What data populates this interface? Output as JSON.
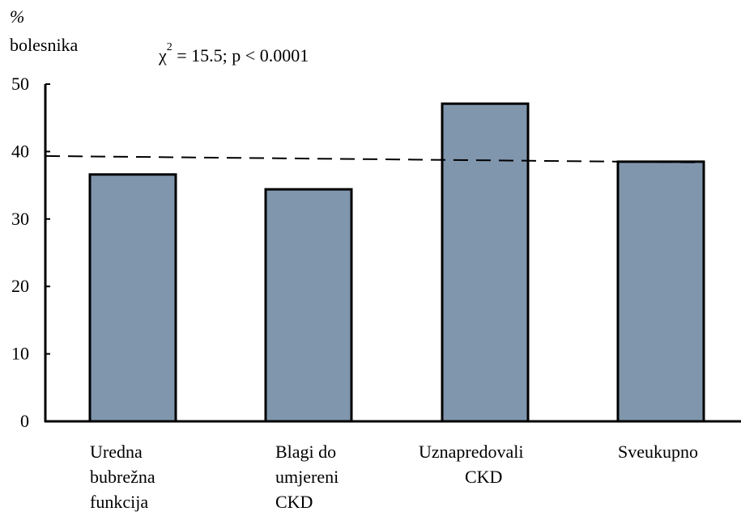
{
  "chart_data": {
    "type": "bar",
    "ylabel_lines": [
      "%",
      "bolesnika"
    ],
    "annotation": {
      "chi": "χ",
      "sup": "2",
      "rest": " = 15.5; p < 0.0001"
    },
    "categories": [
      [
        "Uredna",
        "bubrežna",
        "funkcija"
      ],
      [
        "Blagi do",
        "umjereni",
        "CKD"
      ],
      [
        "Uznapredovali",
        "CKD"
      ],
      [
        "Sveukupno"
      ]
    ],
    "values": [
      36.6,
      34.4,
      47.1,
      38.5
    ],
    "reference_line": 39.1,
    "ylim": [
      0,
      50
    ],
    "yticks": [
      0,
      10,
      20,
      30,
      40,
      50
    ],
    "bar_color": "#8096ad",
    "grid": false
  }
}
